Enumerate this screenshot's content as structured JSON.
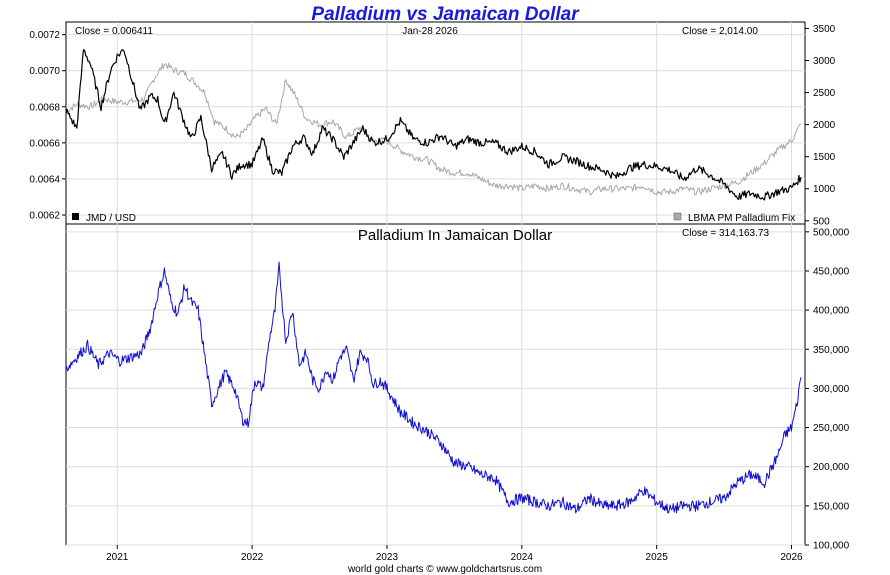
{
  "title": "Palladium vs Jamaican Dollar",
  "footer": "world gold charts © www.goldchartsrus.com",
  "colors": {
    "title": "#1a1adb",
    "jmd_line": "#000000",
    "palladium_line": "#a8a8a8",
    "jmd_price_line": "#1010d0",
    "grid": "#dcdcdc"
  },
  "chart_data": [
    {
      "type": "line",
      "panel": "top",
      "date_label": "Jan-28  2026",
      "xlim": [
        2020.62,
        2026.1
      ],
      "series": [
        {
          "name": "JMD / USD",
          "axis": "left",
          "color": "#000000",
          "close_label": "Close = 0.006411",
          "ylim": [
            0.00615,
            0.00727
          ],
          "yticks": [
            "0.0072",
            "0.0070",
            "0.0068",
            "0.0066",
            "0.0064",
            "0.0062"
          ],
          "ytick_values": [
            0.0072,
            0.007,
            0.0068,
            0.0066,
            0.0064,
            0.0062
          ],
          "x": [
            2020.62,
            2020.7,
            2020.75,
            2020.8,
            2020.88,
            2020.95,
            2021.0,
            2021.05,
            2021.1,
            2021.17,
            2021.25,
            2021.3,
            2021.35,
            2021.42,
            2021.48,
            2021.55,
            2021.62,
            2021.7,
            2021.78,
            2021.85,
            2021.92,
            2022.0,
            2022.08,
            2022.15,
            2022.22,
            2022.3,
            2022.38,
            2022.45,
            2022.52,
            2022.6,
            2022.68,
            2022.75,
            2022.82,
            2022.9,
            2023.0,
            2023.1,
            2023.2,
            2023.3,
            2023.4,
            2023.5,
            2023.6,
            2023.7,
            2023.8,
            2023.9,
            2024.0,
            2024.1,
            2024.2,
            2024.3,
            2024.4,
            2024.5,
            2024.6,
            2024.7,
            2024.8,
            2024.9,
            2025.0,
            2025.1,
            2025.2,
            2025.3,
            2025.4,
            2025.5,
            2025.6,
            2025.7,
            2025.8,
            2025.9,
            2026.0,
            2026.07
          ],
          "values": [
            0.00678,
            0.00668,
            0.00712,
            0.00704,
            0.0068,
            0.007,
            0.00708,
            0.00712,
            0.00698,
            0.00678,
            0.00686,
            0.00684,
            0.0067,
            0.00688,
            0.00675,
            0.00662,
            0.00674,
            0.00646,
            0.00654,
            0.00642,
            0.00648,
            0.00648,
            0.00662,
            0.00645,
            0.00643,
            0.00658,
            0.00663,
            0.00654,
            0.00668,
            0.00662,
            0.00652,
            0.0066,
            0.00668,
            0.0066,
            0.00662,
            0.00672,
            0.00662,
            0.0066,
            0.00664,
            0.00658,
            0.00662,
            0.0066,
            0.0066,
            0.00655,
            0.00658,
            0.00655,
            0.00648,
            0.00652,
            0.0065,
            0.00647,
            0.00645,
            0.00641,
            0.00646,
            0.00648,
            0.00647,
            0.00645,
            0.0064,
            0.00646,
            0.00642,
            0.00637,
            0.0063,
            0.00632,
            0.0063,
            0.00633,
            0.00635,
            0.00641
          ]
        },
        {
          "name": "LBMA PM Palladium Fix",
          "axis": "right",
          "color": "#a8a8a8",
          "close_label": "Close = 2,014.00",
          "ylim": [
            450,
            3600
          ],
          "yticks": [
            "3500",
            "3000",
            "2500",
            "2000",
            "1500",
            "1000",
            "500"
          ],
          "ytick_values": [
            3500,
            3000,
            2500,
            2000,
            1500,
            1000,
            500
          ],
          "x": [
            2020.62,
            2020.7,
            2020.8,
            2020.9,
            2021.0,
            2021.1,
            2021.2,
            2021.28,
            2021.35,
            2021.42,
            2021.5,
            2021.58,
            2021.65,
            2021.72,
            2021.8,
            2021.88,
            2021.95,
            2022.02,
            2022.1,
            2022.18,
            2022.25,
            2022.32,
            2022.4,
            2022.5,
            2022.6,
            2022.7,
            2022.8,
            2022.9,
            2023.0,
            2023.1,
            2023.2,
            2023.3,
            2023.4,
            2023.5,
            2023.6,
            2023.7,
            2023.8,
            2023.9,
            2024.0,
            2024.1,
            2024.2,
            2024.3,
            2024.4,
            2024.5,
            2024.6,
            2024.7,
            2024.8,
            2024.9,
            2025.0,
            2025.1,
            2025.2,
            2025.3,
            2025.4,
            2025.5,
            2025.6,
            2025.7,
            2025.8,
            2025.9,
            2026.0,
            2026.07
          ],
          "values": [
            2200,
            2320,
            2280,
            2400,
            2350,
            2360,
            2400,
            2750,
            2950,
            2850,
            2800,
            2650,
            2500,
            2050,
            1950,
            1800,
            1900,
            2100,
            2250,
            2000,
            2700,
            2450,
            2100,
            2000,
            2050,
            1800,
            1950,
            1750,
            1750,
            1600,
            1500,
            1450,
            1300,
            1250,
            1250,
            1150,
            1050,
            1050,
            1000,
            1050,
            1000,
            1050,
            1000,
            950,
            1000,
            1000,
            1000,
            1050,
            950,
            950,
            1000,
            950,
            1000,
            1050,
            1100,
            1250,
            1400,
            1600,
            1750,
            2014
          ]
        }
      ]
    },
    {
      "type": "line",
      "panel": "bottom",
      "title": "Palladium In Jamaican Dollar",
      "close_label": "Close = 314,163.73",
      "xlim": [
        2020.62,
        2026.1
      ],
      "xticks": [
        "2021",
        "2022",
        "2023",
        "2024",
        "2025",
        "2026"
      ],
      "xtick_values": [
        2021,
        2022,
        2023,
        2024,
        2025,
        2026
      ],
      "ylim": [
        100000,
        510000
      ],
      "yticks": [
        "500,000",
        "450,000",
        "400,000",
        "350,000",
        "300,000",
        "250,000",
        "200,000",
        "150,000",
        "100,000"
      ],
      "ytick_values": [
        500000,
        450000,
        400000,
        350000,
        300000,
        250000,
        200000,
        150000,
        100000
      ],
      "series": [
        {
          "name": "Palladium In Jamaican Dollar",
          "color": "#1010d0",
          "x": [
            2020.62,
            2020.7,
            2020.78,
            2020.86,
            2020.94,
            2021.02,
            2021.1,
            2021.18,
            2021.25,
            2021.3,
            2021.35,
            2021.4,
            2021.45,
            2021.5,
            2021.55,
            2021.6,
            2021.65,
            2021.7,
            2021.75,
            2021.8,
            2021.87,
            2021.93,
            2021.97,
            2022.02,
            2022.08,
            2022.13,
            2022.17,
            2022.2,
            2022.25,
            2022.3,
            2022.35,
            2022.4,
            2022.45,
            2022.5,
            2022.55,
            2022.6,
            2022.65,
            2022.7,
            2022.75,
            2022.8,
            2022.85,
            2022.9,
            2022.95,
            2023.0,
            2023.1,
            2023.2,
            2023.3,
            2023.4,
            2023.5,
            2023.6,
            2023.7,
            2023.8,
            2023.9,
            2024.0,
            2024.1,
            2024.2,
            2024.3,
            2024.4,
            2024.5,
            2024.6,
            2024.7,
            2024.8,
            2024.9,
            2025.0,
            2025.1,
            2025.2,
            2025.3,
            2025.4,
            2025.5,
            2025.6,
            2025.7,
            2025.8,
            2025.9,
            2025.95,
            2026.0,
            2026.04,
            2026.07
          ],
          "values": [
            325000,
            340000,
            355000,
            330000,
            345000,
            335000,
            340000,
            345000,
            380000,
            420000,
            450000,
            410000,
            395000,
            430000,
            410000,
            400000,
            340000,
            280000,
            300000,
            320000,
            300000,
            260000,
            255000,
            310000,
            300000,
            365000,
            400000,
            455000,
            360000,
            400000,
            330000,
            345000,
            310000,
            300000,
            325000,
            310000,
            340000,
            350000,
            310000,
            345000,
            340000,
            305000,
            310000,
            300000,
            270000,
            255000,
            245000,
            230000,
            205000,
            200000,
            190000,
            185000,
            155000,
            160000,
            155000,
            150000,
            155000,
            145000,
            160000,
            150000,
            150000,
            155000,
            170000,
            155000,
            145000,
            150000,
            150000,
            155000,
            160000,
            180000,
            190000,
            180000,
            215000,
            240000,
            250000,
            280000,
            314164
          ]
        }
      ]
    }
  ]
}
